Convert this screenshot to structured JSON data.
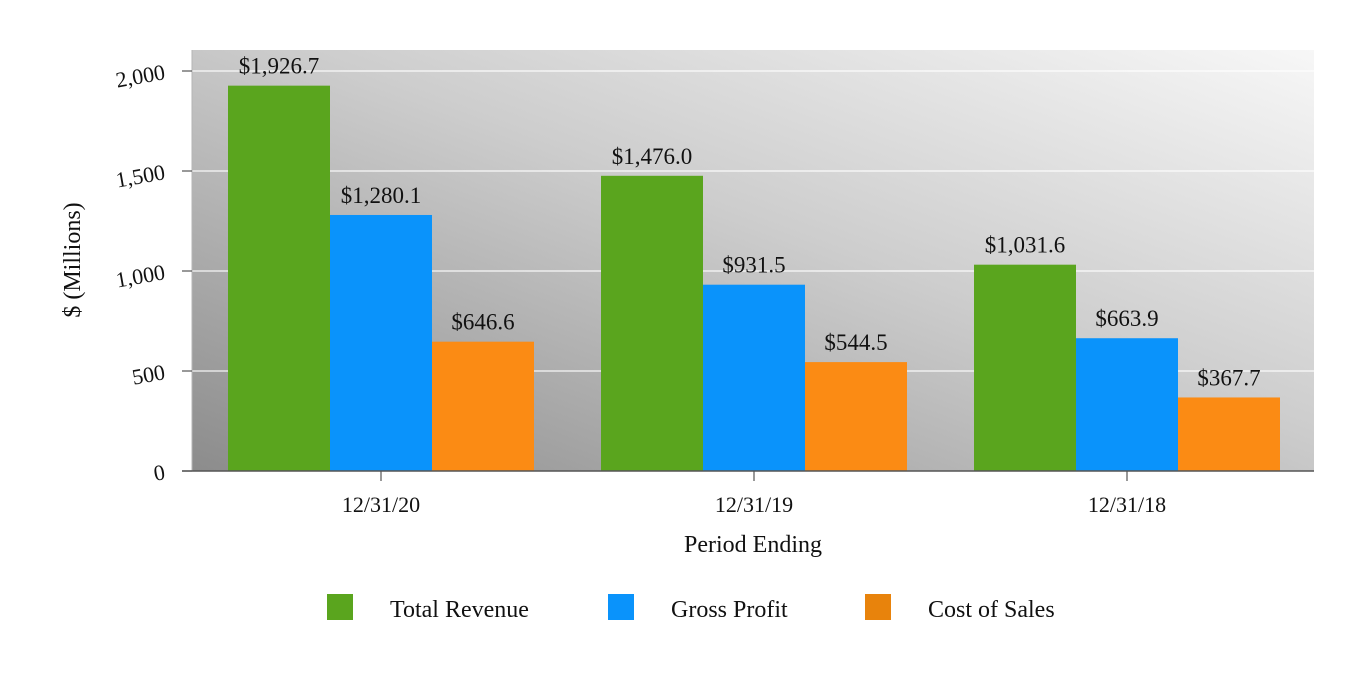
{
  "chart_data": {
    "type": "bar",
    "title": "",
    "xlabel": "Period Ending",
    "ylabel": "$ (Millions)",
    "ylim": [
      0,
      2000
    ],
    "yticks": [
      0,
      500,
      1000,
      1500,
      2000
    ],
    "ytick_labels": [
      "0",
      "500",
      "1,000",
      "1,500",
      "2,000"
    ],
    "categories": [
      "12/31/20",
      "12/31/19",
      "12/31/18"
    ],
    "series": [
      {
        "name": "Total Revenue",
        "color": "#5aa51e",
        "values": [
          1926.7,
          1476.0,
          1031.6
        ],
        "labels": [
          "$1,926.7",
          "$1,476.0",
          "$1,031.6"
        ]
      },
      {
        "name": "Gross Profit",
        "color": "#0a93fb",
        "values": [
          1280.1,
          931.5,
          663.9
        ],
        "labels": [
          "$1,280.1",
          "$931.5",
          "$663.9"
        ]
      },
      {
        "name": "Cost of Sales",
        "color": "#fb8b14",
        "values": [
          646.6,
          544.5,
          367.7
        ],
        "labels": [
          "$646.6",
          "$544.5",
          "$367.7"
        ]
      }
    ],
    "legend_position": "bottom",
    "grid": true
  }
}
